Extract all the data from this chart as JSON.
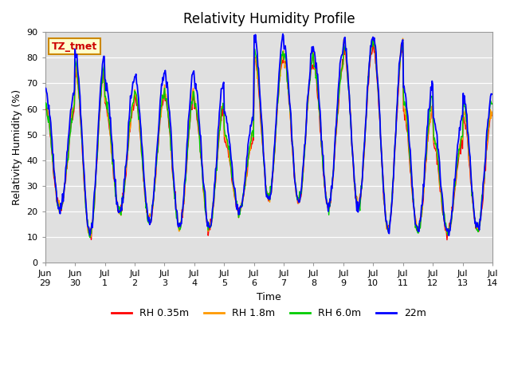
{
  "title": "Relativity Humidity Profile",
  "xlabel": "Time",
  "ylabel": "Relativity Humidity (%)",
  "ylim": [
    0,
    90
  ],
  "yticks": [
    0,
    10,
    20,
    30,
    40,
    50,
    60,
    70,
    80,
    90
  ],
  "xtick_labels": [
    "Jun\n29",
    "Jun\n30",
    "Jul\n1",
    "Jul\n2",
    "Jul\n3",
    "Jul\n4",
    "Jul\n5",
    "Jul\n6",
    "Jul\n7",
    "Jul\n8",
    "Jul\n9",
    "Jul\n10",
    "Jul\n11",
    "Jul\n12",
    "Jul\n13",
    "Jul\n14"
  ],
  "colors": {
    "RH 0.35m": "#ff0000",
    "RH 1.8m": "#ff9900",
    "RH 6.0m": "#00cc00",
    "22m": "#0000ff"
  },
  "bg_color": "#e0e0e0",
  "annotation_text": "TZ_tmet",
  "annotation_bg": "#ffffcc",
  "annotation_border": "#cc8800",
  "annotation_text_color": "#cc0000",
  "day_peaks_base": [
    60,
    75,
    62,
    65,
    65,
    61,
    48,
    81,
    79,
    76,
    85,
    84,
    59,
    47,
    58
  ],
  "day_troughs_base": [
    21,
    11,
    20,
    16,
    14,
    14,
    20,
    25,
    24,
    22,
    22,
    13,
    13,
    12,
    13
  ],
  "peak_spread_035": [
    0,
    0,
    0,
    0,
    0,
    0,
    0,
    0,
    0,
    0,
    0,
    0,
    0,
    0,
    0
  ],
  "peak_spread_18": [
    2,
    1,
    1,
    1,
    2,
    2,
    2,
    1,
    1,
    2,
    2,
    2,
    2,
    2,
    2
  ],
  "peak_spread_60": [
    1,
    2,
    2,
    2,
    1,
    1,
    3,
    2,
    2,
    1,
    1,
    2,
    5,
    3,
    6
  ],
  "peak_spread_22": [
    8,
    7,
    9,
    8,
    9,
    9,
    10,
    8,
    5,
    7,
    3,
    3,
    10,
    10,
    8
  ],
  "n_days": 15,
  "n_per_day": 48
}
